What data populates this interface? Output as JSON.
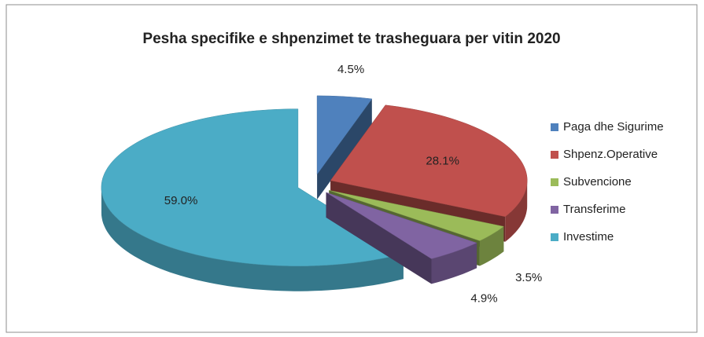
{
  "chart_data": {
    "type": "pie3d",
    "title": "Pesha specifike e shpenzimet te trasheguara per vitin 2020",
    "categories": [
      "Paga dhe Sigurime",
      "Shpenz.Operative",
      "Subvencione",
      "Transferime",
      "Investime"
    ],
    "values": [
      4.5,
      28.1,
      3.5,
      4.9,
      59.0
    ],
    "value_labels": [
      "4.5%",
      "28.1%",
      "3.5%",
      "4.9%",
      "59.0%"
    ],
    "colors": [
      "#4f81bd",
      "#c0504d",
      "#9bbb59",
      "#8064a2",
      "#4bacc6"
    ],
    "legend": "right"
  }
}
